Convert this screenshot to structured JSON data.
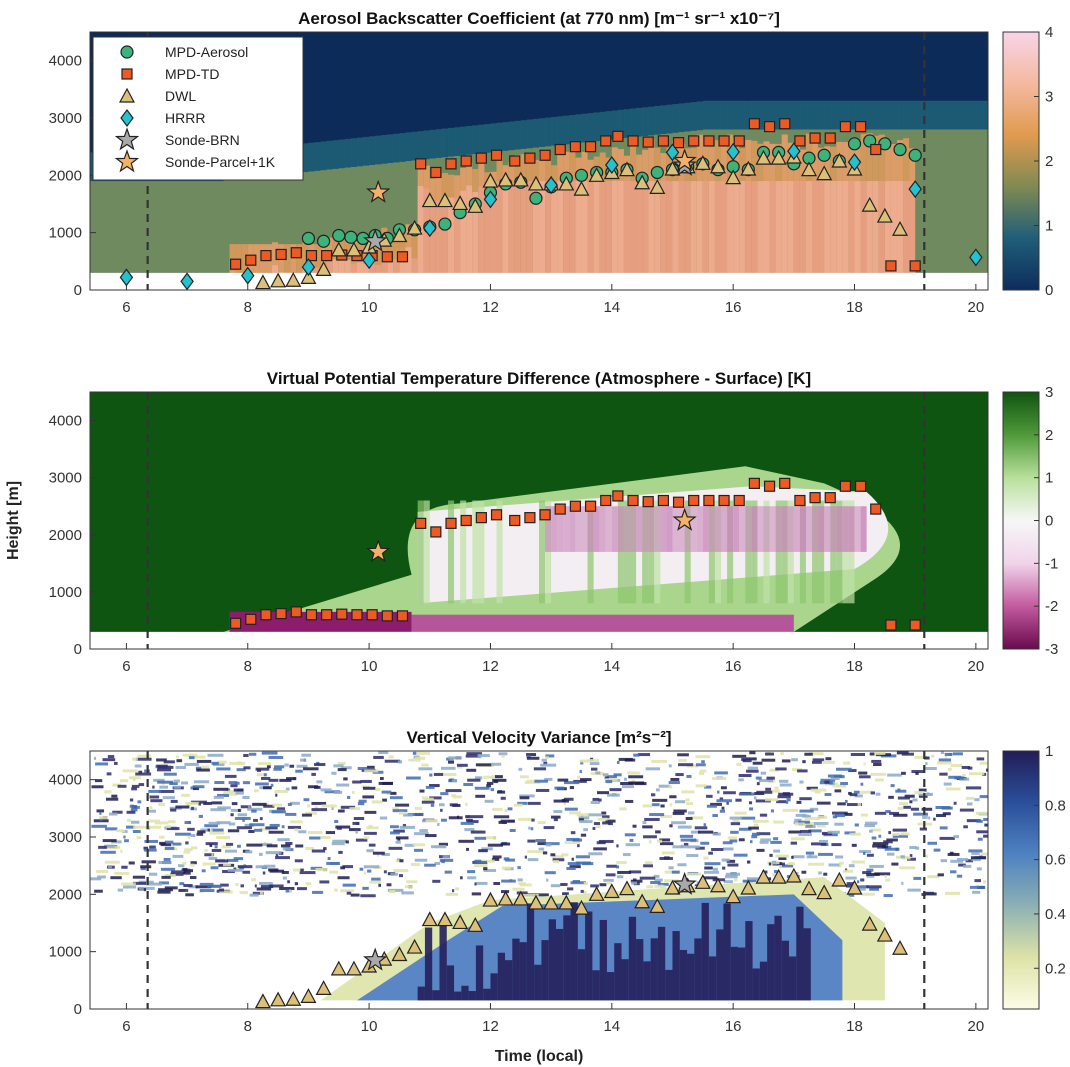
{
  "chart_data": [
    {
      "type": "heatmap",
      "title": "Aerosol Backscatter Coefficient (at 770 nm) [m⁻¹ sr⁻¹ x10⁻⁷]",
      "xlim": [
        5.4,
        20.2
      ],
      "ylim": [
        0,
        4500
      ],
      "x_ticks": [
        6,
        8,
        10,
        12,
        14,
        16,
        18,
        20
      ],
      "y_ticks": [
        0,
        1000,
        2000,
        3000,
        4000
      ],
      "colorbar": {
        "min": 0,
        "max": 4,
        "ticks": [
          0,
          1,
          2,
          3,
          4
        ],
        "colors": [
          "#0d2d5c",
          "#1f5e78",
          "#7f8a52",
          "#e09a4f",
          "#f4b9a0",
          "#f8d4e8"
        ]
      },
      "dashed_lines_x": [
        6.35,
        19.15
      ],
      "legend_position": "top-left",
      "series": [
        {
          "name": "MPD-Aerosol",
          "marker": "circle",
          "color": "#3cb37a",
          "x": [
            9.0,
            9.25,
            9.5,
            9.7,
            9.9,
            10.1,
            10.3,
            10.5,
            10.75,
            11.0,
            11.25,
            11.5,
            11.75,
            12.0,
            12.25,
            12.5,
            12.75,
            13.0,
            13.25,
            13.5,
            13.75,
            14.0,
            14.25,
            14.5,
            14.75,
            15.0,
            15.25,
            15.5,
            15.75,
            16.0,
            16.25,
            16.5,
            16.75,
            17.0,
            17.25,
            17.5,
            17.75,
            18.0,
            18.25,
            18.5,
            18.75,
            19.0
          ],
          "y": [
            900,
            850,
            950,
            920,
            900,
            950,
            900,
            1050,
            1050,
            1100,
            1150,
            1350,
            1500,
            1700,
            1850,
            1880,
            1600,
            1800,
            1950,
            2000,
            2050,
            2050,
            2100,
            1950,
            2050,
            2100,
            2150,
            2200,
            2100,
            2150,
            2100,
            2400,
            2400,
            2200,
            2300,
            2350,
            2250,
            2550,
            2600,
            2550,
            2450,
            2350
          ]
        },
        {
          "name": "MPD-TD",
          "marker": "square",
          "color": "#ee5a24",
          "x": [
            7.8,
            8.05,
            8.3,
            8.55,
            8.8,
            9.05,
            9.3,
            9.55,
            9.8,
            10.05,
            10.3,
            10.55,
            10.85,
            11.1,
            11.35,
            11.6,
            11.85,
            12.1,
            12.4,
            12.65,
            12.9,
            13.15,
            13.4,
            13.65,
            13.9,
            14.1,
            14.35,
            14.6,
            14.85,
            15.1,
            15.35,
            15.6,
            15.85,
            16.1,
            16.35,
            16.6,
            16.85,
            17.1,
            17.35,
            17.6,
            17.85,
            18.1,
            18.35,
            18.6,
            19.0
          ],
          "y": [
            450,
            520,
            600,
            620,
            650,
            600,
            600,
            610,
            600,
            600,
            580,
            580,
            2200,
            2050,
            2200,
            2250,
            2300,
            2350,
            2250,
            2300,
            2350,
            2450,
            2500,
            2500,
            2600,
            2680,
            2600,
            2580,
            2600,
            2570,
            2600,
            2600,
            2600,
            2600,
            2900,
            2850,
            2900,
            2600,
            2650,
            2650,
            2850,
            2850,
            2450,
            420,
            420
          ]
        },
        {
          "name": "DWL",
          "marker": "triangle",
          "color": "#dcc07a",
          "x": [
            8.25,
            8.5,
            8.75,
            9.0,
            9.25,
            9.5,
            9.75,
            10.0,
            10.25,
            10.5,
            10.75,
            11.0,
            11.25,
            11.5,
            11.75,
            12.0,
            12.25,
            12.5,
            12.75,
            13.0,
            13.25,
            13.5,
            13.75,
            14.0,
            14.25,
            14.5,
            14.75,
            15.0,
            15.25,
            15.5,
            15.75,
            16.0,
            16.25,
            16.5,
            16.75,
            17.0,
            17.25,
            17.5,
            17.75,
            18.0,
            18.25,
            18.5,
            18.75
          ],
          "y": [
            130,
            160,
            170,
            220,
            360,
            700,
            700,
            750,
            870,
            950,
            1080,
            1560,
            1560,
            1510,
            1460,
            1900,
            1920,
            1920,
            1850,
            1850,
            1850,
            1760,
            2000,
            2050,
            2100,
            1870,
            1790,
            2110,
            2150,
            2210,
            2150,
            1960,
            2110,
            2300,
            2300,
            2320,
            2100,
            2030,
            2250,
            2110,
            1480,
            1290,
            1060
          ]
        },
        {
          "name": "HRRR",
          "marker": "diamond",
          "color": "#22c2cf",
          "x": [
            6.0,
            7.0,
            8.0,
            9.0,
            10.0,
            11.0,
            12.0,
            13.0,
            14.0,
            15.0,
            16.0,
            17.0,
            18.0,
            19.0,
            20.0
          ],
          "y": [
            220,
            150,
            250,
            400,
            520,
            1080,
            1580,
            1830,
            2180,
            2400,
            2410,
            2420,
            2230,
            1760,
            570
          ]
        },
        {
          "name": "Sonde-BRN",
          "marker": "star",
          "color": "#a9a9a9",
          "x": [
            10.1,
            15.2
          ],
          "y": [
            850,
            2170
          ]
        },
        {
          "name": "Sonde-Parcel+1K",
          "marker": "star",
          "color": "#f5b16a",
          "x": [
            10.15,
            15.2
          ],
          "y": [
            1700,
            2250
          ]
        }
      ]
    },
    {
      "type": "heatmap",
      "title": "Virtual Potential Temperature Difference (Atmosphere - Surface) [K]",
      "xlim": [
        5.4,
        20.2
      ],
      "ylim": [
        0,
        4500
      ],
      "x_ticks": [
        6,
        8,
        10,
        12,
        14,
        16,
        18,
        20
      ],
      "y_ticks": [
        0,
        1000,
        2000,
        3000,
        4000
      ],
      "ylabel": "Height [m]",
      "colorbar": {
        "min": -3,
        "max": 3,
        "ticks": [
          -3,
          -2,
          -1,
          0,
          1,
          2,
          3
        ],
        "colors": [
          "#6a0a4e",
          "#c25a9f",
          "#f0d4ea",
          "#f7f7f7",
          "#b8e09a",
          "#4f9a3a",
          "#0f5411"
        ]
      },
      "dashed_lines_x": [
        6.35,
        19.15
      ],
      "series": [
        {
          "name": "MPD-TD",
          "marker": "square",
          "color": "#ee5a24",
          "x": [
            7.8,
            8.05,
            8.3,
            8.55,
            8.8,
            9.05,
            9.3,
            9.55,
            9.8,
            10.05,
            10.3,
            10.55,
            10.85,
            11.1,
            11.35,
            11.6,
            11.85,
            12.1,
            12.4,
            12.65,
            12.9,
            13.15,
            13.4,
            13.65,
            13.9,
            14.1,
            14.35,
            14.6,
            14.85,
            15.1,
            15.35,
            15.6,
            15.85,
            16.1,
            16.35,
            16.6,
            16.85,
            17.1,
            17.35,
            17.6,
            17.85,
            18.1,
            18.35,
            18.6,
            19.0
          ],
          "y": [
            450,
            520,
            600,
            620,
            650,
            600,
            600,
            610,
            600,
            600,
            580,
            580,
            2200,
            2050,
            2200,
            2250,
            2300,
            2350,
            2250,
            2300,
            2350,
            2450,
            2500,
            2500,
            2600,
            2680,
            2600,
            2580,
            2600,
            2570,
            2600,
            2600,
            2600,
            2600,
            2900,
            2850,
            2900,
            2600,
            2650,
            2650,
            2850,
            2850,
            2450,
            420,
            420
          ]
        },
        {
          "name": "Sonde-Parcel+1K",
          "marker": "star",
          "color": "#f5b16a",
          "x": [
            10.15,
            15.2
          ],
          "y": [
            1700,
            2250
          ]
        }
      ]
    },
    {
      "type": "heatmap",
      "title": "Vertical Velocity Variance [m²s⁻²]",
      "xlim": [
        5.4,
        20.2
      ],
      "ylim": [
        0,
        4500
      ],
      "x_ticks": [
        6,
        8,
        10,
        12,
        14,
        16,
        18,
        20
      ],
      "y_ticks": [
        0,
        1000,
        2000,
        3000,
        4000
      ],
      "xlabel": "Time (local)",
      "colorbar": {
        "min": 0.05,
        "max": 1,
        "ticks": [
          0.2,
          0.4,
          0.6,
          0.8,
          1
        ],
        "colors": [
          "#fcfce6",
          "#dde3a6",
          "#8cb0b4",
          "#4e82c0",
          "#2a4f9a",
          "#231d57"
        ]
      },
      "dashed_lines_x": [
        6.35,
        19.15
      ],
      "series": [
        {
          "name": "DWL",
          "marker": "triangle",
          "color": "#dcc07a",
          "x": [
            8.25,
            8.5,
            8.75,
            9.0,
            9.25,
            9.5,
            9.75,
            10.0,
            10.25,
            10.5,
            10.75,
            11.0,
            11.25,
            11.5,
            11.75,
            12.0,
            12.25,
            12.5,
            12.75,
            13.0,
            13.25,
            13.5,
            13.75,
            14.0,
            14.25,
            14.5,
            14.75,
            15.0,
            15.25,
            15.5,
            15.75,
            16.0,
            16.25,
            16.5,
            16.75,
            17.0,
            17.25,
            17.5,
            17.75,
            18.0,
            18.25,
            18.5,
            18.75
          ],
          "y": [
            130,
            160,
            170,
            220,
            360,
            700,
            700,
            750,
            870,
            950,
            1080,
            1560,
            1560,
            1510,
            1460,
            1900,
            1920,
            1920,
            1850,
            1850,
            1850,
            1760,
            2000,
            2050,
            2100,
            1870,
            1790,
            2110,
            2150,
            2210,
            2150,
            1960,
            2110,
            2300,
            2300,
            2320,
            2100,
            2030,
            2250,
            2110,
            1480,
            1290,
            1060
          ]
        },
        {
          "name": "Sonde-BRN",
          "marker": "star",
          "color": "#a9a9a9",
          "x": [
            10.1,
            15.2
          ],
          "y": [
            850,
            2170
          ]
        }
      ]
    }
  ]
}
